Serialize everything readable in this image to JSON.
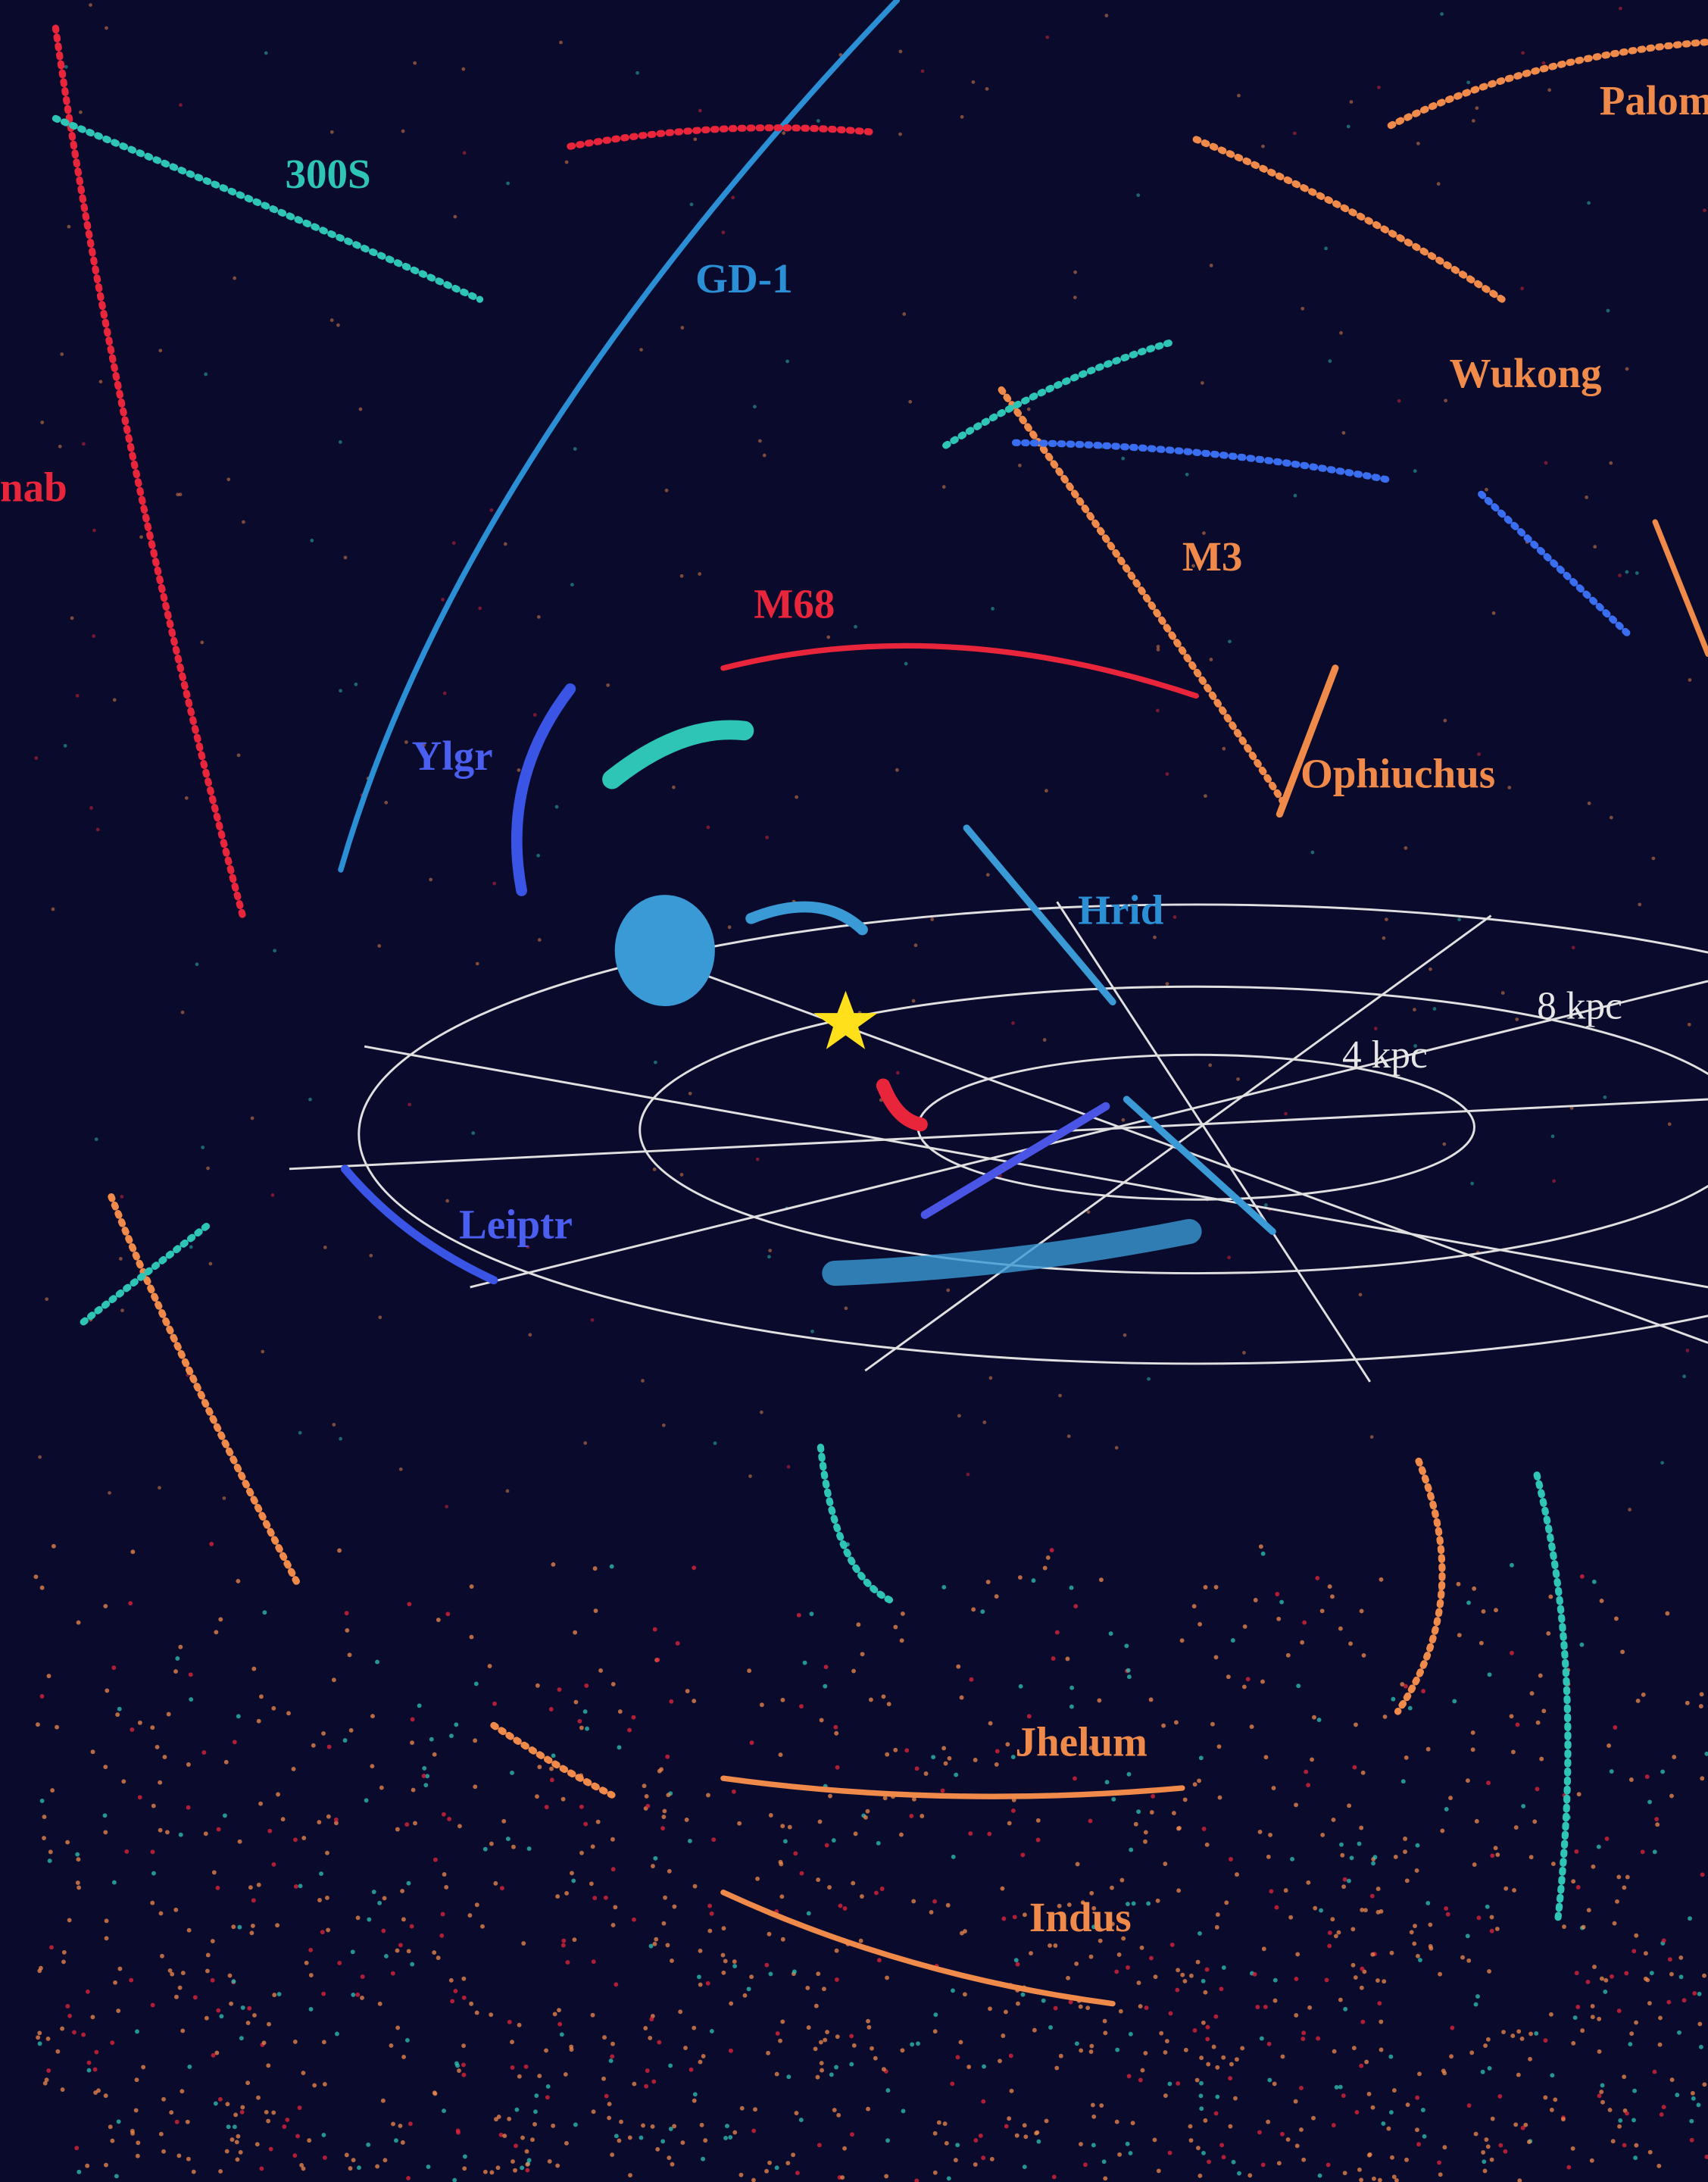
{
  "labels": {
    "palomar": "Palom",
    "s300": "300S",
    "gd1": "GD-1",
    "wukong": "Wukong",
    "chenab": "nab",
    "m3": "M3",
    "m68": "M68",
    "ylgr": "Ylgr",
    "ophiuchus": "Ophiuchus",
    "hrid": "Hrid",
    "kpc8": "8 kpc",
    "kpc4": "4 kpc",
    "leiptr": "Leiptr",
    "jhelum": "Jhelum",
    "indus": "Indus"
  }
}
